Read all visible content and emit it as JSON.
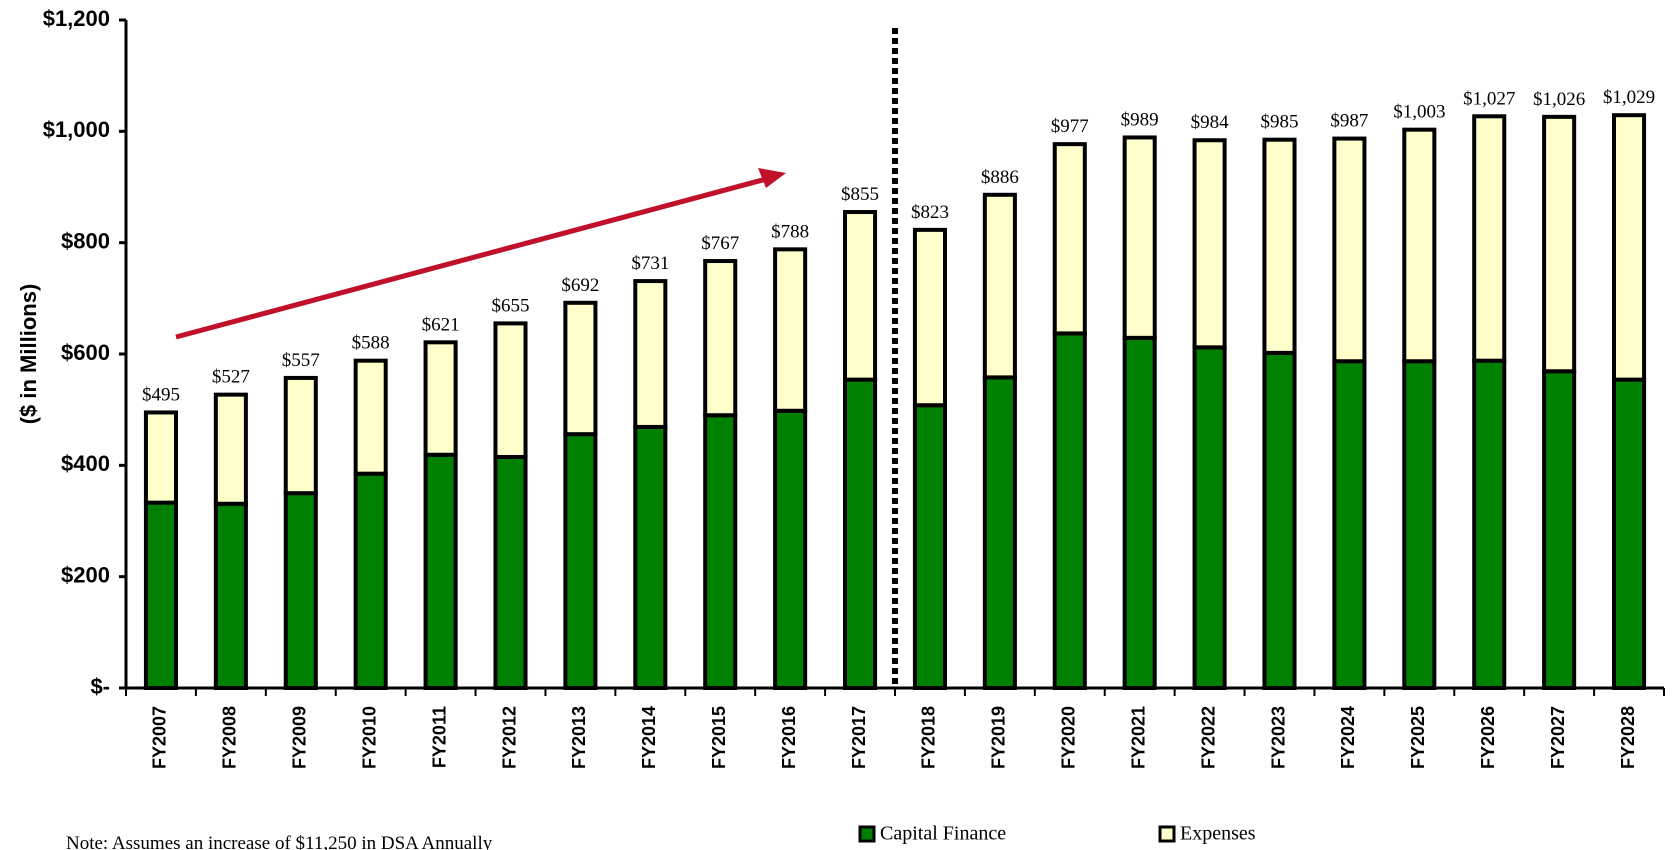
{
  "chart_data": {
    "type": "stacked_bar",
    "y_label": "($ in Millions)",
    "note": "Note: Assumes an increase of $11,250 in DSA Annually",
    "categories": [
      "FY2007",
      "FY2008",
      "FY2009",
      "FY2010",
      "FY2011",
      "FY2012",
      "FY2013",
      "FY2014",
      "FY2015",
      "FY2016",
      "FY2017",
      "FY2018",
      "FY2019",
      "FY2020",
      "FY2021",
      "FY2022",
      "FY2023",
      "FY2024",
      "FY2025",
      "FY2026",
      "FY2027",
      "FY2028"
    ],
    "series": [
      {
        "name": "Capital Finance",
        "color": "#008000",
        "values": [
          333,
          331,
          350,
          385,
          419,
          415,
          456,
          469,
          490,
          498,
          554,
          508,
          558,
          637,
          629,
          612,
          602,
          587,
          587,
          588,
          569,
          554
        ]
      },
      {
        "name": "Expenses",
        "color": "#ffffcc",
        "values": [
          162,
          196,
          207,
          203,
          202,
          240,
          236,
          262,
          277,
          290,
          301,
          315,
          328,
          340,
          360,
          372,
          383,
          400,
          416,
          439,
          457,
          475
        ]
      }
    ],
    "totals": {
      "values": [
        495,
        527,
        557,
        588,
        621,
        655,
        692,
        731,
        767,
        788,
        855,
        823,
        886,
        977,
        989,
        984,
        985,
        987,
        1003,
        1027,
        1026,
        1029
      ],
      "value_labels": [
        "$495",
        "$527",
        "$557",
        "$588",
        "$621",
        "$655",
        "$692",
        "$731",
        "$767",
        "$788",
        "$855",
        "$823",
        "$886",
        "$977",
        "$989",
        "$984",
        "$985",
        "$987",
        "$1,003",
        "$1,027",
        "$1,026",
        "$1,029"
      ]
    },
    "ylim": [
      0,
      1200
    ],
    "yticks": [
      {
        "value": 0,
        "label": "$-"
      },
      {
        "value": 200,
        "label": "$200"
      },
      {
        "value": 400,
        "label": "$400"
      },
      {
        "value": 600,
        "label": "$600"
      },
      {
        "value": 800,
        "label": "$800"
      },
      {
        "value": 1000,
        "label": "$1,000"
      },
      {
        "value": 1200,
        "label": "$1,200"
      }
    ],
    "grid": false
  }
}
